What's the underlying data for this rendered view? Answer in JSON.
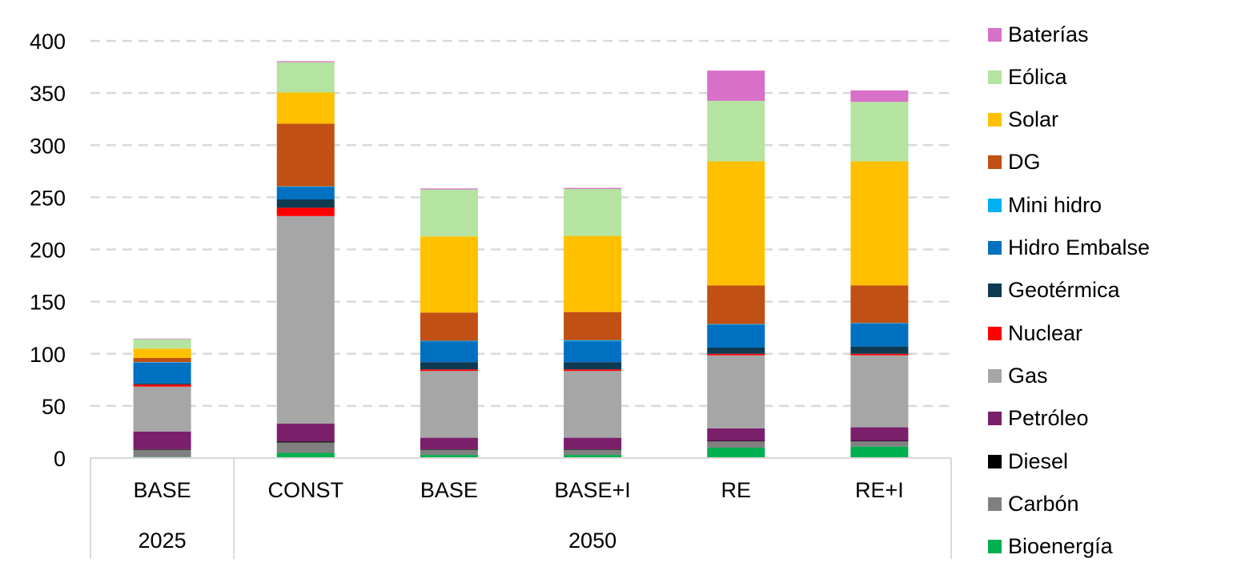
{
  "chart_data": {
    "type": "bar",
    "stacked": true,
    "categories": [
      "BASE",
      "CONST",
      "BASE",
      "BASE+I",
      "RE",
      "RE+I"
    ],
    "groups": [
      {
        "label": "2025",
        "categories": [
          0
        ]
      },
      {
        "label": "2050",
        "categories": [
          1,
          2,
          3,
          4,
          5
        ]
      }
    ],
    "ylim": [
      0,
      400
    ],
    "yticks": [
      0,
      50,
      100,
      150,
      200,
      250,
      300,
      350,
      400
    ],
    "grid": true,
    "legend_position": "right",
    "series": [
      {
        "name": "Bioenergía",
        "color": "#00b050",
        "values": [
          1,
          5,
          3,
          3,
          10,
          11
        ]
      },
      {
        "name": "Carbón",
        "color": "#808080",
        "values": [
          7,
          10,
          5,
          5,
          6,
          5
        ]
      },
      {
        "name": "Diesel",
        "color": "#000000",
        "values": [
          0.5,
          1,
          0.5,
          0.5,
          0.5,
          0.5
        ]
      },
      {
        "name": "Petróleo",
        "color": "#7b1f6b",
        "values": [
          17,
          17,
          11,
          11,
          12,
          13
        ]
      },
      {
        "name": "Gas",
        "color": "#a6a6a6",
        "values": [
          43,
          199,
          64,
          64,
          70,
          69
        ]
      },
      {
        "name": "Nuclear",
        "color": "#ff0000",
        "values": [
          2,
          8,
          1.5,
          1.5,
          1.5,
          1.5
        ]
      },
      {
        "name": "Geotérmica",
        "color": "#0e3a52",
        "values": [
          1,
          8,
          7,
          7,
          6,
          7
        ]
      },
      {
        "name": "Hidro Embalse",
        "color": "#0070c0",
        "values": [
          20,
          12,
          20,
          20,
          22,
          22
        ]
      },
      {
        "name": "Mini hidro",
        "color": "#00b0f0",
        "values": [
          0.5,
          0.5,
          0.5,
          1,
          0.5,
          0.5
        ]
      },
      {
        "name": "DG",
        "color": "#c05014",
        "values": [
          4,
          60,
          27,
          27,
          37,
          36
        ]
      },
      {
        "name": "Solar",
        "color": "#ffc000",
        "values": [
          9,
          30,
          73,
          73,
          119,
          119
        ]
      },
      {
        "name": "Eólica",
        "color": "#b4e4a0",
        "values": [
          9,
          29,
          45,
          45,
          58,
          57
        ]
      },
      {
        "name": "Baterías",
        "color": "#d870c8",
        "values": [
          0.5,
          1,
          1,
          1,
          29,
          11
        ]
      }
    ]
  }
}
